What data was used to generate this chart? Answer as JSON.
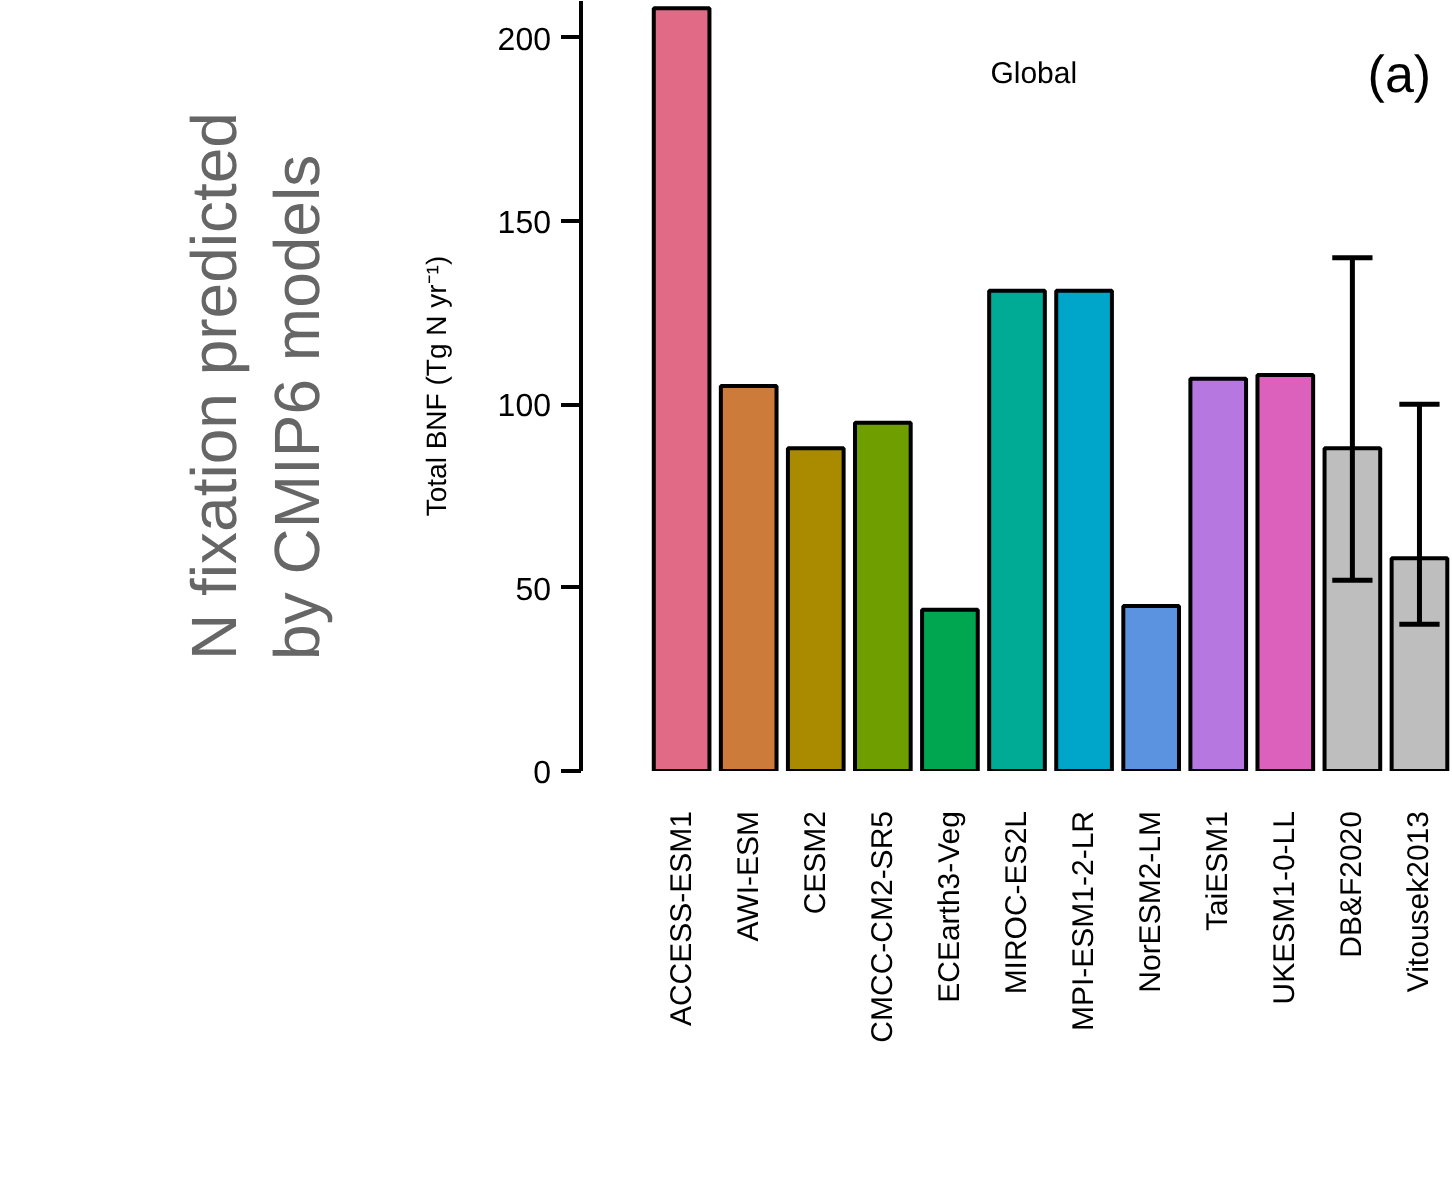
{
  "chart_data": {
    "type": "bar",
    "title": "N fixation predicted\nby CMIP6 models",
    "ylabel": "Total BNF (Tg N yr⁻¹)",
    "annotations": [
      "Global",
      "(a)"
    ],
    "categories": [
      "ACCESS-ESM1",
      "AWI-ESM",
      "CESM2",
      "CMCC-CM2-SR5",
      "ECEarth3-Veg",
      "MIROC-ES2L",
      "MPI-ESM1-2-LR",
      "NorESM2-LM",
      "TaiESM1",
      "UKESM1-0-LL",
      "DB&F2020",
      "Vitousek2013"
    ],
    "values": [
      208,
      105,
      88,
      95,
      44,
      131,
      131,
      45,
      107,
      108,
      88,
      58
    ],
    "colors": [
      "#e16a86",
      "#cd7b3a",
      "#aa8b00",
      "#6f9e00",
      "#00a650",
      "#00ab96",
      "#00a6ca",
      "#5b93e1",
      "#b677e0",
      "#dc61bd",
      "#bebebe",
      "#bebebe"
    ],
    "errors": [
      null,
      null,
      null,
      null,
      null,
      null,
      null,
      null,
      null,
      null,
      [
        52,
        140
      ],
      [
        40,
        100
      ]
    ],
    "ylim": [
      0,
      210
    ],
    "yticks": [
      0,
      50,
      100,
      150,
      200
    ],
    "grid": false
  }
}
